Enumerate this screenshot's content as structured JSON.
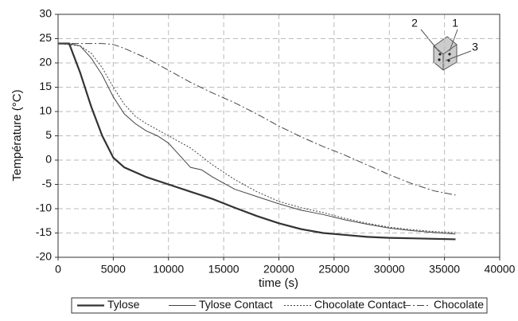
{
  "chart_data": {
    "type": "line",
    "xlabel": "time (s)",
    "ylabel": "Température (°C)",
    "xlim": [
      0,
      40000
    ],
    "xticks": [
      0,
      5000,
      10000,
      15000,
      20000,
      25000,
      30000,
      35000,
      40000
    ],
    "ylim": [
      -20,
      30
    ],
    "yticks": [
      -20,
      -15,
      -10,
      -5,
      0,
      5,
      10,
      15,
      20,
      25,
      30
    ],
    "grid": true,
    "legend": "bottom",
    "annotations": [
      "1",
      "2",
      "3"
    ],
    "series": [
      {
        "name": "Tylose",
        "color": "#333333",
        "dash": "solid",
        "line_width": 2.2,
        "x": [
          0,
          1000,
          2000,
          3000,
          4000,
          5000,
          6000,
          8000,
          10000,
          12000,
          14000,
          16000,
          18000,
          20000,
          22000,
          24000,
          26000,
          28000,
          30000,
          32000,
          34000,
          36000
        ],
        "values": [
          24,
          24,
          18,
          11,
          5,
          0.5,
          -1.5,
          -3.5,
          -5,
          -6.5,
          -8,
          -9.8,
          -11.5,
          -13,
          -14.2,
          -15,
          -15.4,
          -15.8,
          -16,
          -16.1,
          -16.2,
          -16.3
        ]
      },
      {
        "name": "Tylose Contact",
        "color": "#444444",
        "dash": "solid",
        "line_width": 1,
        "x": [
          0,
          1000,
          2000,
          3000,
          4000,
          5000,
          6000,
          7000,
          8000,
          9000,
          10000,
          11000,
          12000,
          13000,
          14000,
          16000,
          18000,
          20000,
          22000,
          24000,
          26000,
          28000,
          30000,
          32000,
          34000,
          36000
        ],
        "values": [
          24,
          24,
          23.5,
          21,
          17.5,
          13,
          9.5,
          7.5,
          6,
          5,
          3.5,
          1,
          -1.5,
          -2,
          -3.5,
          -6,
          -7.5,
          -9,
          -10.3,
          -11.2,
          -12.3,
          -13.2,
          -14,
          -14.5,
          -14.9,
          -15.2
        ]
      },
      {
        "name": "Chocolate Contact",
        "color": "#444444",
        "dash": "dotted",
        "line_width": 1,
        "x": [
          0,
          2000,
          3000,
          4000,
          5000,
          6000,
          7000,
          8000,
          10000,
          12000,
          14000,
          16000,
          18000,
          20000,
          22000,
          24000,
          26000,
          28000,
          30000,
          32000,
          34000,
          36000
        ],
        "values": [
          24,
          23.5,
          22,
          19,
          15,
          11.5,
          9,
          7.5,
          5,
          2.5,
          -1,
          -4,
          -6.5,
          -8.5,
          -9.8,
          -10.8,
          -12,
          -13,
          -13.8,
          -14.3,
          -14.7,
          -14.9
        ]
      },
      {
        "name": "Chocolate",
        "color": "#444444",
        "dash": "dashdot",
        "line_width": 1,
        "x": [
          0,
          2000,
          4000,
          5000,
          6000,
          8000,
          10000,
          12000,
          14000,
          16000,
          18000,
          20000,
          22000,
          24000,
          26000,
          28000,
          30000,
          32000,
          34000,
          36000
        ],
        "values": [
          24,
          24,
          24,
          23.8,
          23,
          21,
          18.5,
          16,
          13.8,
          11.8,
          9.5,
          7,
          4.8,
          2.8,
          1,
          -1,
          -3,
          -4.8,
          -6.3,
          -7.2
        ]
      }
    ]
  }
}
